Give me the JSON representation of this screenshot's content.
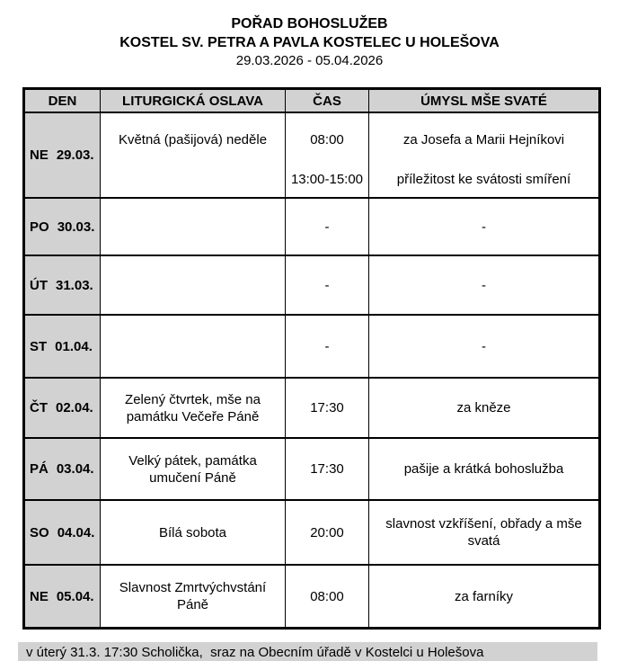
{
  "page": {
    "title": "POŘAD BOHOSLUŽEB",
    "subtitle": "KOSTEL SV. PETRA A PAVLA KOSTELEC U HOLEŠOVA",
    "date_range": "29.03.2026 - 05.04.2026"
  },
  "table": {
    "headers": {
      "den": "DEN",
      "oslava": "LITURGICKÁ OSLAVA",
      "cas": "ČAS",
      "umysl": "ÚMYSL MŠE SVATÉ"
    },
    "rows": [
      {
        "day": "NE",
        "date": "29.03.",
        "celebration": "Květná (pašijová) neděle",
        "entries": [
          {
            "time": "08:00",
            "intention": "za Josefa a Marii Hejníkovi"
          },
          {
            "time": "13:00-15:00",
            "intention": "příležitost ke svátosti smíření"
          }
        ]
      },
      {
        "day": "PO",
        "date": "30.03.",
        "celebration": "",
        "entries": [
          {
            "time": "-",
            "intention": "-"
          }
        ]
      },
      {
        "day": "ÚT",
        "date": "31.03.",
        "celebration": "",
        "entries": [
          {
            "time": "-",
            "intention": "-"
          }
        ]
      },
      {
        "day": "ST",
        "date": "01.04.",
        "celebration": "",
        "entries": [
          {
            "time": "-",
            "intention": "-"
          }
        ]
      },
      {
        "day": "ČT",
        "date": "02.04.",
        "celebration": "Zelený čtvrtek, mše na památku Večeře Páně",
        "entries": [
          {
            "time": "17:30",
            "intention": "za kněze"
          }
        ]
      },
      {
        "day": "PÁ",
        "date": "03.04.",
        "celebration": "Velký pátek, památka umučení Páně",
        "entries": [
          {
            "time": "17:30",
            "intention": "pašije a krátká bohoslužba"
          }
        ]
      },
      {
        "day": "SO",
        "date": "04.04.",
        "celebration": "Bílá sobota",
        "entries": [
          {
            "time": "20:00",
            "intention": "slavnost vzkříšení, obřady a mše svatá"
          }
        ]
      },
      {
        "day": "NE",
        "date": "05.04.",
        "celebration": "Slavnost Zmrtvýchvstání Páně",
        "entries": [
          {
            "time": "08:00",
            "intention": "za farníky"
          }
        ]
      }
    ]
  },
  "footer": {
    "note": "v úterý 31.3. 17:30 Scholička,  sraz na Obecním úřadě v Kostelci u Holešova"
  },
  "colors": {
    "header_cell_bg": "#d2d2d2",
    "border": "#000000",
    "page_bg": "#ffffff"
  }
}
